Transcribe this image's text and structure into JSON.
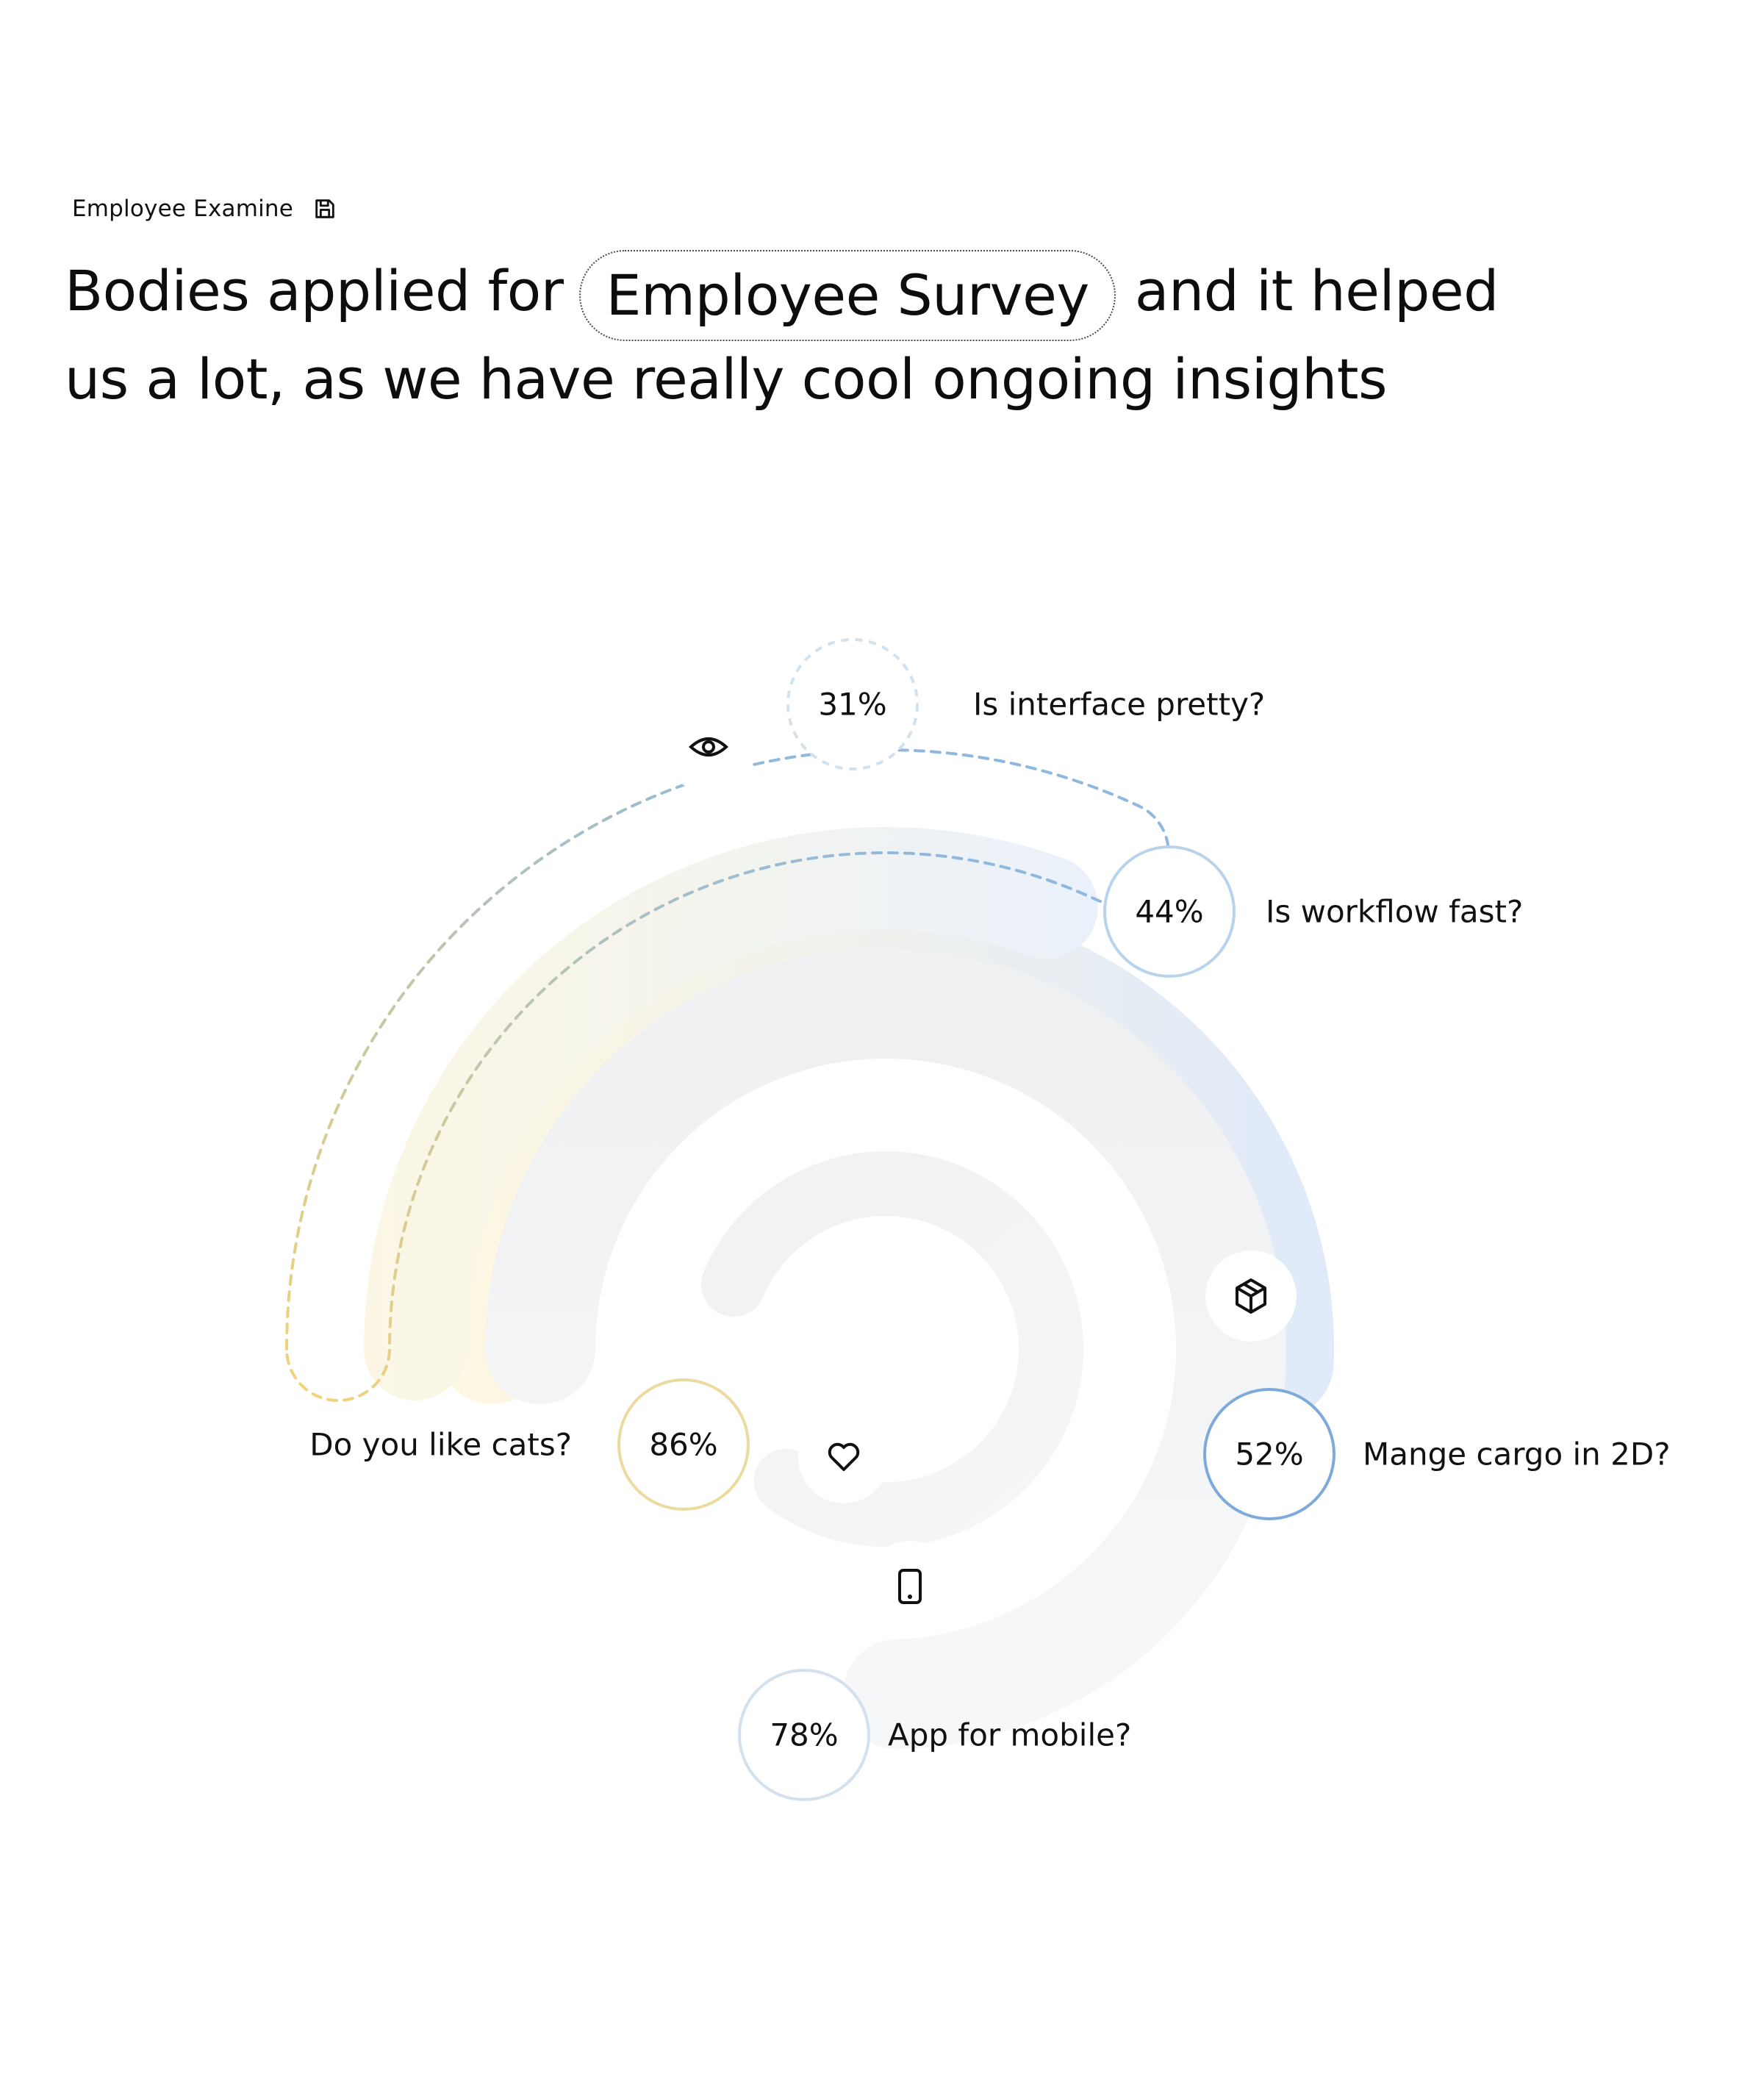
{
  "header": {
    "label": "Employee Examine",
    "icon": "save-icon"
  },
  "headline": {
    "before": "Bodies applied for",
    "pill": "Employee Survey",
    "after": "and it helped",
    "line2": "us a lot, as we have really cool ongoing insights"
  },
  "chart_data": {
    "type": "radial-bar",
    "series": [
      {
        "question": "Is interface pretty?",
        "value": 31,
        "display": "31%",
        "icon": "eye-icon",
        "color": "#9fc2e4",
        "style": "dashed"
      },
      {
        "question": "Is workflow fast?",
        "value": 44,
        "display": "44%",
        "icon": "",
        "color": "#b9d3ec",
        "style": "solid"
      },
      {
        "question": "Mange cargo in 2D?",
        "value": 52,
        "display": "52%",
        "icon": "box-icon",
        "color": "#7eaadb",
        "style": "solid"
      },
      {
        "question": "App for mobile?",
        "value": 78,
        "display": "78%",
        "icon": "mobile-icon",
        "color": "#d3e1ee",
        "style": "solid"
      },
      {
        "question": "Do you like cats?",
        "value": 86,
        "display": "86%",
        "icon": "heart-icon",
        "color": "#ecdba0",
        "style": "solid"
      }
    ]
  }
}
